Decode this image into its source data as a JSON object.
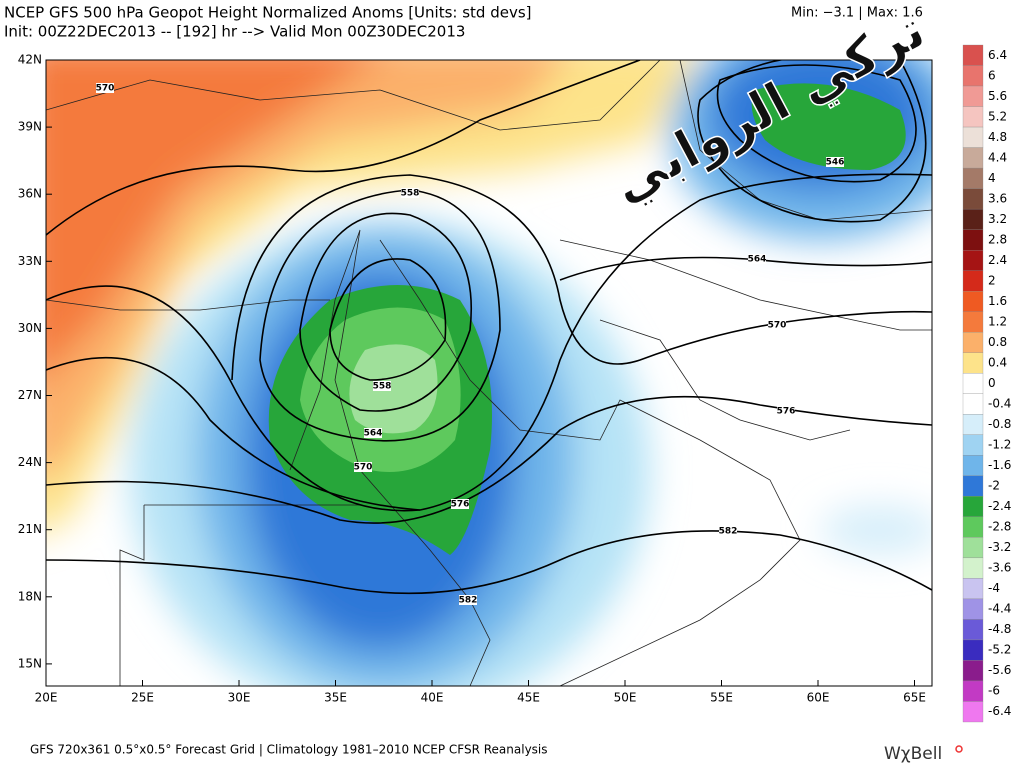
{
  "header": {
    "title": "NCEP GFS 500 hPa Geopot Height Normalized Anoms [Units: std devs]",
    "subtitle": "Init: 00Z22DEC2013 -- [192] hr --> Valid Mon 00Z30DEC2013",
    "minmax": "Min:  −3.1 | Max:   1.6"
  },
  "watermark": "تركي الروابي",
  "lat_labels": [
    "42N",
    "39N",
    "36N",
    "33N",
    "30N",
    "27N",
    "24N",
    "21N",
    "18N",
    "15N"
  ],
  "lon_labels": [
    "20E",
    "25E",
    "30E",
    "35E",
    "40E",
    "45E",
    "50E",
    "55E",
    "60E",
    "65E"
  ],
  "colorbar_labels": [
    "6.4",
    "6",
    "5.6",
    "5.2",
    "4.8",
    "4.4",
    "4",
    "3.6",
    "3.2",
    "2.8",
    "2.4",
    "2",
    "1.6",
    "1.2",
    "0.8",
    "0.4",
    "0",
    "-0.4",
    "-0.8",
    "-1.2",
    "-1.6",
    "-2",
    "-2.4",
    "-2.8",
    "-3.2",
    "-3.6",
    "-4",
    "-4.4",
    "-4.8",
    "-5.2",
    "-5.6",
    "-6",
    "-6.4"
  ],
  "contour_labels": [
    "570",
    "558",
    "546",
    "564",
    "570",
    "576",
    "582",
    "582",
    "576",
    "570",
    "564",
    "558"
  ],
  "footer": "GFS 720x361 0.5°x0.5° Forecast Grid | Climatology 1981–2010 NCEP CFSR Reanalysis",
  "logo": "WχBell"
}
